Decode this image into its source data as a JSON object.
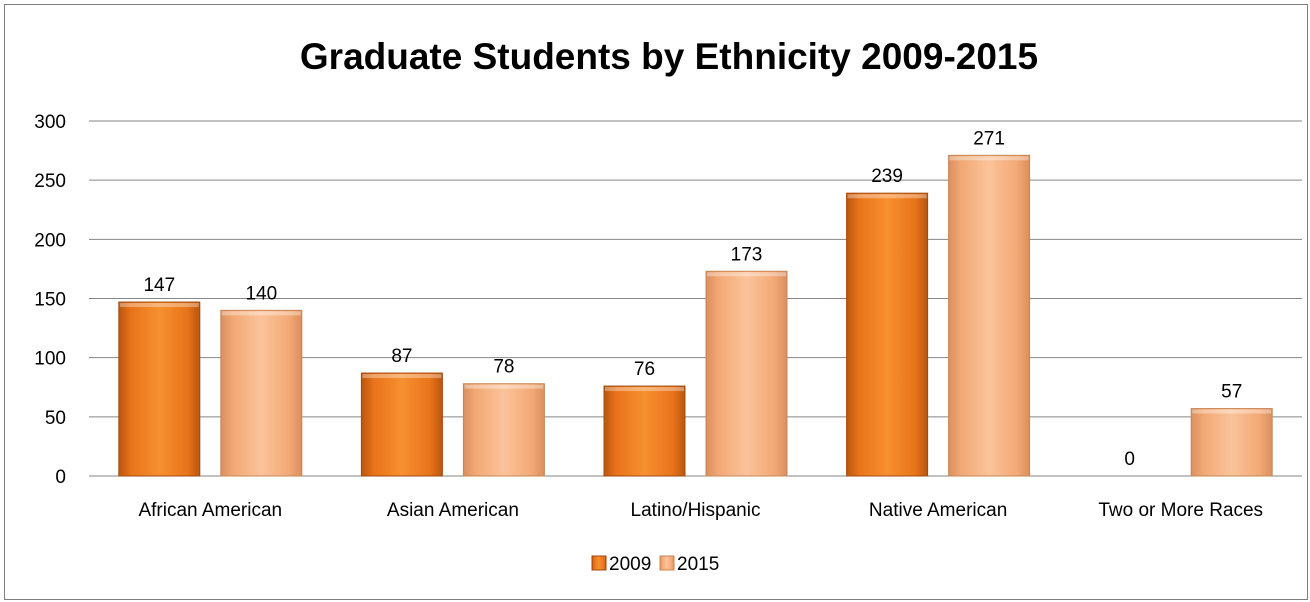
{
  "chart_data": {
    "type": "bar",
    "title": "Graduate Students by Ethnicity 2009-2015",
    "xlabel": "",
    "ylabel": "",
    "categories": [
      "African American",
      "Asian American",
      "Latino/Hispanic",
      "Native American",
      "Two or More Races"
    ],
    "series": [
      {
        "name": "2009",
        "values": [
          147,
          87,
          76,
          239,
          0
        ],
        "color": "#e8731a"
      },
      {
        "name": "2015",
        "values": [
          140,
          78,
          173,
          271,
          57
        ],
        "color": "#f5b080"
      }
    ],
    "ylim": [
      0,
      300
    ],
    "yticks": [
      "0",
      "50",
      "100",
      "150",
      "200",
      "250",
      "300"
    ],
    "grid": true,
    "legend_position": "bottom",
    "data_labels": true
  }
}
